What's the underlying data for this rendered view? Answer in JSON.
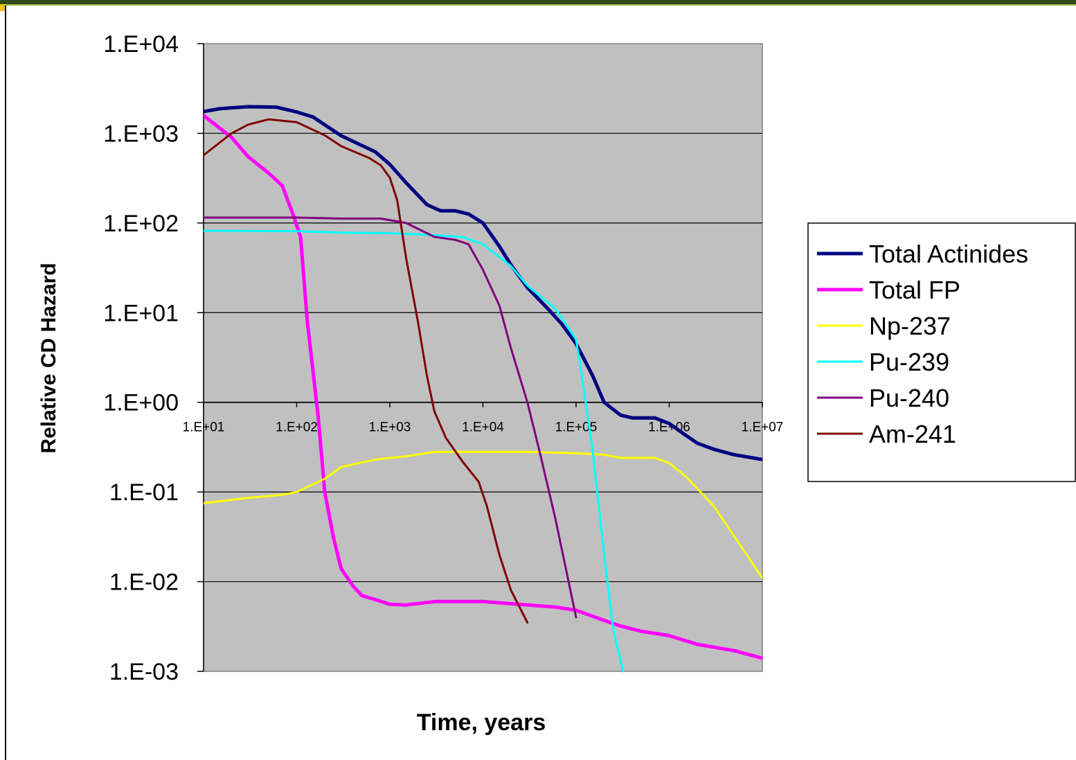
{
  "chart_data": {
    "type": "line",
    "xlabel": "Time, years",
    "ylabel": "Relative CD Hazard",
    "x_scale": "log",
    "y_scale": "log",
    "xlim": [
      10,
      10000000
    ],
    "ylim": [
      0.001,
      10000
    ],
    "x_ticks": [
      "1.E+01",
      "1.E+02",
      "1.E+03",
      "1.E+04",
      "1.E+05",
      "1.E+06",
      "1.E+07"
    ],
    "y_ticks": [
      "1.E+04",
      "1.E+03",
      "1.E+02",
      "1.E+01",
      "1.E+00",
      "1.E-01",
      "1.E-02",
      "1.E-03"
    ],
    "grid": "horizontal",
    "legend_position": "right",
    "plot_background": "#c0c0c0",
    "series": [
      {
        "name": "Total Actinides",
        "color": "#000080",
        "width": 5,
        "points": [
          [
            10,
            1750
          ],
          [
            15,
            1880
          ],
          [
            30,
            1980
          ],
          [
            60,
            1960
          ],
          [
            100,
            1730
          ],
          [
            150,
            1520
          ],
          [
            300,
            940
          ],
          [
            700,
            620
          ],
          [
            1000,
            450
          ],
          [
            1500,
            280
          ],
          [
            2500,
            160
          ],
          [
            3500,
            137
          ],
          [
            5000,
            137
          ],
          [
            7000,
            126
          ],
          [
            10000,
            100
          ],
          [
            15000,
            55
          ],
          [
            20000,
            34
          ],
          [
            30000,
            19
          ],
          [
            50000,
            11
          ],
          [
            70000,
            7.5
          ],
          [
            100000,
            4.5
          ],
          [
            150000,
            2
          ],
          [
            200000,
            1
          ],
          [
            300000,
            0.72
          ],
          [
            400000,
            0.67
          ],
          [
            700000,
            0.67
          ],
          [
            1000000,
            0.58
          ],
          [
            1500000,
            0.43
          ],
          [
            2000000,
            0.35
          ],
          [
            3000000,
            0.3
          ],
          [
            5000000,
            0.26
          ],
          [
            10000000,
            0.23
          ]
        ]
      },
      {
        "name": "Total FP",
        "color": "#ff00ff",
        "width": 5,
        "points": [
          [
            10,
            1580
          ],
          [
            20,
            900
          ],
          [
            30,
            550
          ],
          [
            50,
            360
          ],
          [
            70,
            260
          ],
          [
            90,
            130
          ],
          [
            110,
            70
          ],
          [
            130,
            8
          ],
          [
            170,
            0.7
          ],
          [
            200,
            0.1
          ],
          [
            250,
            0.03
          ],
          [
            300,
            0.014
          ],
          [
            400,
            0.009
          ],
          [
            500,
            0.007
          ],
          [
            700,
            0.0063
          ],
          [
            1000,
            0.0056
          ],
          [
            1500,
            0.0055
          ],
          [
            3000,
            0.006
          ],
          [
            10000,
            0.006
          ],
          [
            30000,
            0.0055
          ],
          [
            60000,
            0.0052
          ],
          [
            100000,
            0.0048
          ],
          [
            200000,
            0.0037
          ],
          [
            300000,
            0.0032
          ],
          [
            500000,
            0.0028
          ],
          [
            1000000,
            0.0025
          ],
          [
            2000000,
            0.002
          ],
          [
            5000000,
            0.0017
          ],
          [
            10000000,
            0.0014
          ]
        ]
      },
      {
        "name": "Np-237",
        "color": "#ffff00",
        "width": 3,
        "points": [
          [
            10,
            0.075
          ],
          [
            30,
            0.086
          ],
          [
            70,
            0.093
          ],
          [
            100,
            0.1
          ],
          [
            200,
            0.14
          ],
          [
            300,
            0.19
          ],
          [
            700,
            0.23
          ],
          [
            1500,
            0.25
          ],
          [
            3000,
            0.28
          ],
          [
            10000,
            0.28
          ],
          [
            30000,
            0.28
          ],
          [
            100000,
            0.27
          ],
          [
            200000,
            0.26
          ],
          [
            300000,
            0.24
          ],
          [
            700000,
            0.24
          ],
          [
            1000000,
            0.21
          ],
          [
            1500000,
            0.15
          ],
          [
            3000000,
            0.07
          ],
          [
            10000000,
            0.011
          ]
        ]
      },
      {
        "name": "Pu-239",
        "color": "#00ffff",
        "width": 3,
        "points": [
          [
            10,
            82
          ],
          [
            100,
            81
          ],
          [
            300,
            78
          ],
          [
            1000,
            77
          ],
          [
            3000,
            73
          ],
          [
            6000,
            70
          ],
          [
            10000,
            58
          ],
          [
            20000,
            33
          ],
          [
            30000,
            20
          ],
          [
            60000,
            11
          ],
          [
            100000,
            5
          ],
          [
            120000,
            1.5
          ],
          [
            150000,
            0.3
          ],
          [
            200000,
            0.02
          ],
          [
            250000,
            0.003
          ],
          [
            320000,
            0.001
          ]
        ]
      },
      {
        "name": "Pu-240",
        "color": "#800080",
        "width": 3,
        "points": [
          [
            10,
            115
          ],
          [
            100,
            115
          ],
          [
            300,
            112
          ],
          [
            800,
            112
          ],
          [
            1500,
            100
          ],
          [
            3000,
            70
          ],
          [
            5000,
            65
          ],
          [
            7000,
            58
          ],
          [
            10000,
            30
          ],
          [
            15000,
            12
          ],
          [
            20000,
            4
          ],
          [
            30000,
            1
          ],
          [
            40000,
            0.3
          ],
          [
            60000,
            0.05
          ],
          [
            80000,
            0.012
          ],
          [
            100000,
            0.004
          ]
        ]
      },
      {
        "name": "Am-241",
        "color": "#800000",
        "width": 3,
        "points": [
          [
            10,
            570
          ],
          [
            20,
            1000
          ],
          [
            30,
            1250
          ],
          [
            50,
            1430
          ],
          [
            100,
            1330
          ],
          [
            200,
            950
          ],
          [
            300,
            720
          ],
          [
            600,
            530
          ],
          [
            800,
            440
          ],
          [
            1000,
            320
          ],
          [
            1200,
            180
          ],
          [
            1500,
            40
          ],
          [
            2000,
            8
          ],
          [
            2500,
            2
          ],
          [
            3000,
            0.8
          ],
          [
            4000,
            0.4
          ],
          [
            6000,
            0.22
          ],
          [
            9000,
            0.13
          ],
          [
            11000,
            0.07
          ],
          [
            15000,
            0.02
          ],
          [
            20000,
            0.008
          ],
          [
            30000,
            0.0035
          ]
        ]
      }
    ]
  }
}
